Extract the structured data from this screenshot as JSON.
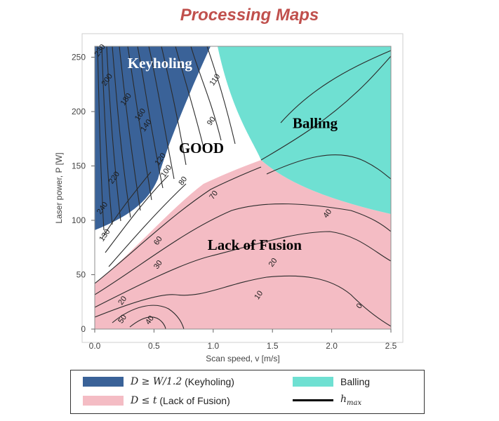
{
  "title": "Processing Maps",
  "chart_data": {
    "type": "contour",
    "xlabel": "Scan speed, v [m/s]",
    "ylabel": "Laser power, P [W]",
    "xlim": [
      0,
      2.5
    ],
    "ylim": [
      0,
      260
    ],
    "x_ticks": [
      "0.0",
      "0.5",
      "1.0",
      "1.5",
      "2.0",
      "2.5"
    ],
    "y_ticks": [
      "0",
      "50",
      "100",
      "150",
      "200",
      "250"
    ],
    "regions": [
      {
        "label": "Keyholing",
        "color": "#3a6298"
      },
      {
        "label": "GOOD",
        "color": "#ffffff"
      },
      {
        "label": "Balling",
        "color": "#6fe0d2"
      },
      {
        "label": "Lack of Fusion",
        "color": "#f4bcc4"
      }
    ],
    "contour_labels": [
      {
        "text": "230",
        "x": 0.06,
        "y": 255
      },
      {
        "text": "200",
        "x": 0.12,
        "y": 228
      },
      {
        "text": "180",
        "x": 0.28,
        "y": 210
      },
      {
        "text": "160",
        "x": 0.4,
        "y": 196
      },
      {
        "text": "140",
        "x": 0.45,
        "y": 186
      },
      {
        "text": "120",
        "x": 0.57,
        "y": 155
      },
      {
        "text": "110",
        "x": 1.03,
        "y": 228
      },
      {
        "text": "100",
        "x": 0.62,
        "y": 144
      },
      {
        "text": "90",
        "x": 1.0,
        "y": 190
      },
      {
        "text": "80",
        "x": 0.76,
        "y": 135
      },
      {
        "text": "70",
        "x": 1.02,
        "y": 122
      },
      {
        "text": "60",
        "x": 0.55,
        "y": 80
      },
      {
        "text": "50",
        "x": 0.25,
        "y": 8
      },
      {
        "text": "40",
        "x": 0.48,
        "y": 7
      },
      {
        "text": "40",
        "x": 1.98,
        "y": 105
      },
      {
        "text": "30",
        "x": 0.55,
        "y": 58
      },
      {
        "text": "20",
        "x": 1.52,
        "y": 60
      },
      {
        "text": "20",
        "x": 0.25,
        "y": 25
      },
      {
        "text": "10",
        "x": 1.4,
        "y": 30
      },
      {
        "text": "0",
        "x": 2.25,
        "y": 20
      },
      {
        "text": "240",
        "x": 0.08,
        "y": 110
      },
      {
        "text": "220",
        "x": 0.18,
        "y": 138
      },
      {
        "text": "130",
        "x": 0.1,
        "y": 85
      }
    ]
  },
  "legend": {
    "keyhole_expr": "D ≥ W/1.2",
    "keyhole_text": "(Keyholing)",
    "keyhole_color": "#3a6298",
    "fusion_expr": "D ≤ t",
    "fusion_text": "(Lack of Fusion)",
    "fusion_color": "#f4bcc4",
    "balling_text": "Balling",
    "balling_color": "#6fe0d2",
    "hmax_text": "h",
    "hmax_sub": "max"
  }
}
